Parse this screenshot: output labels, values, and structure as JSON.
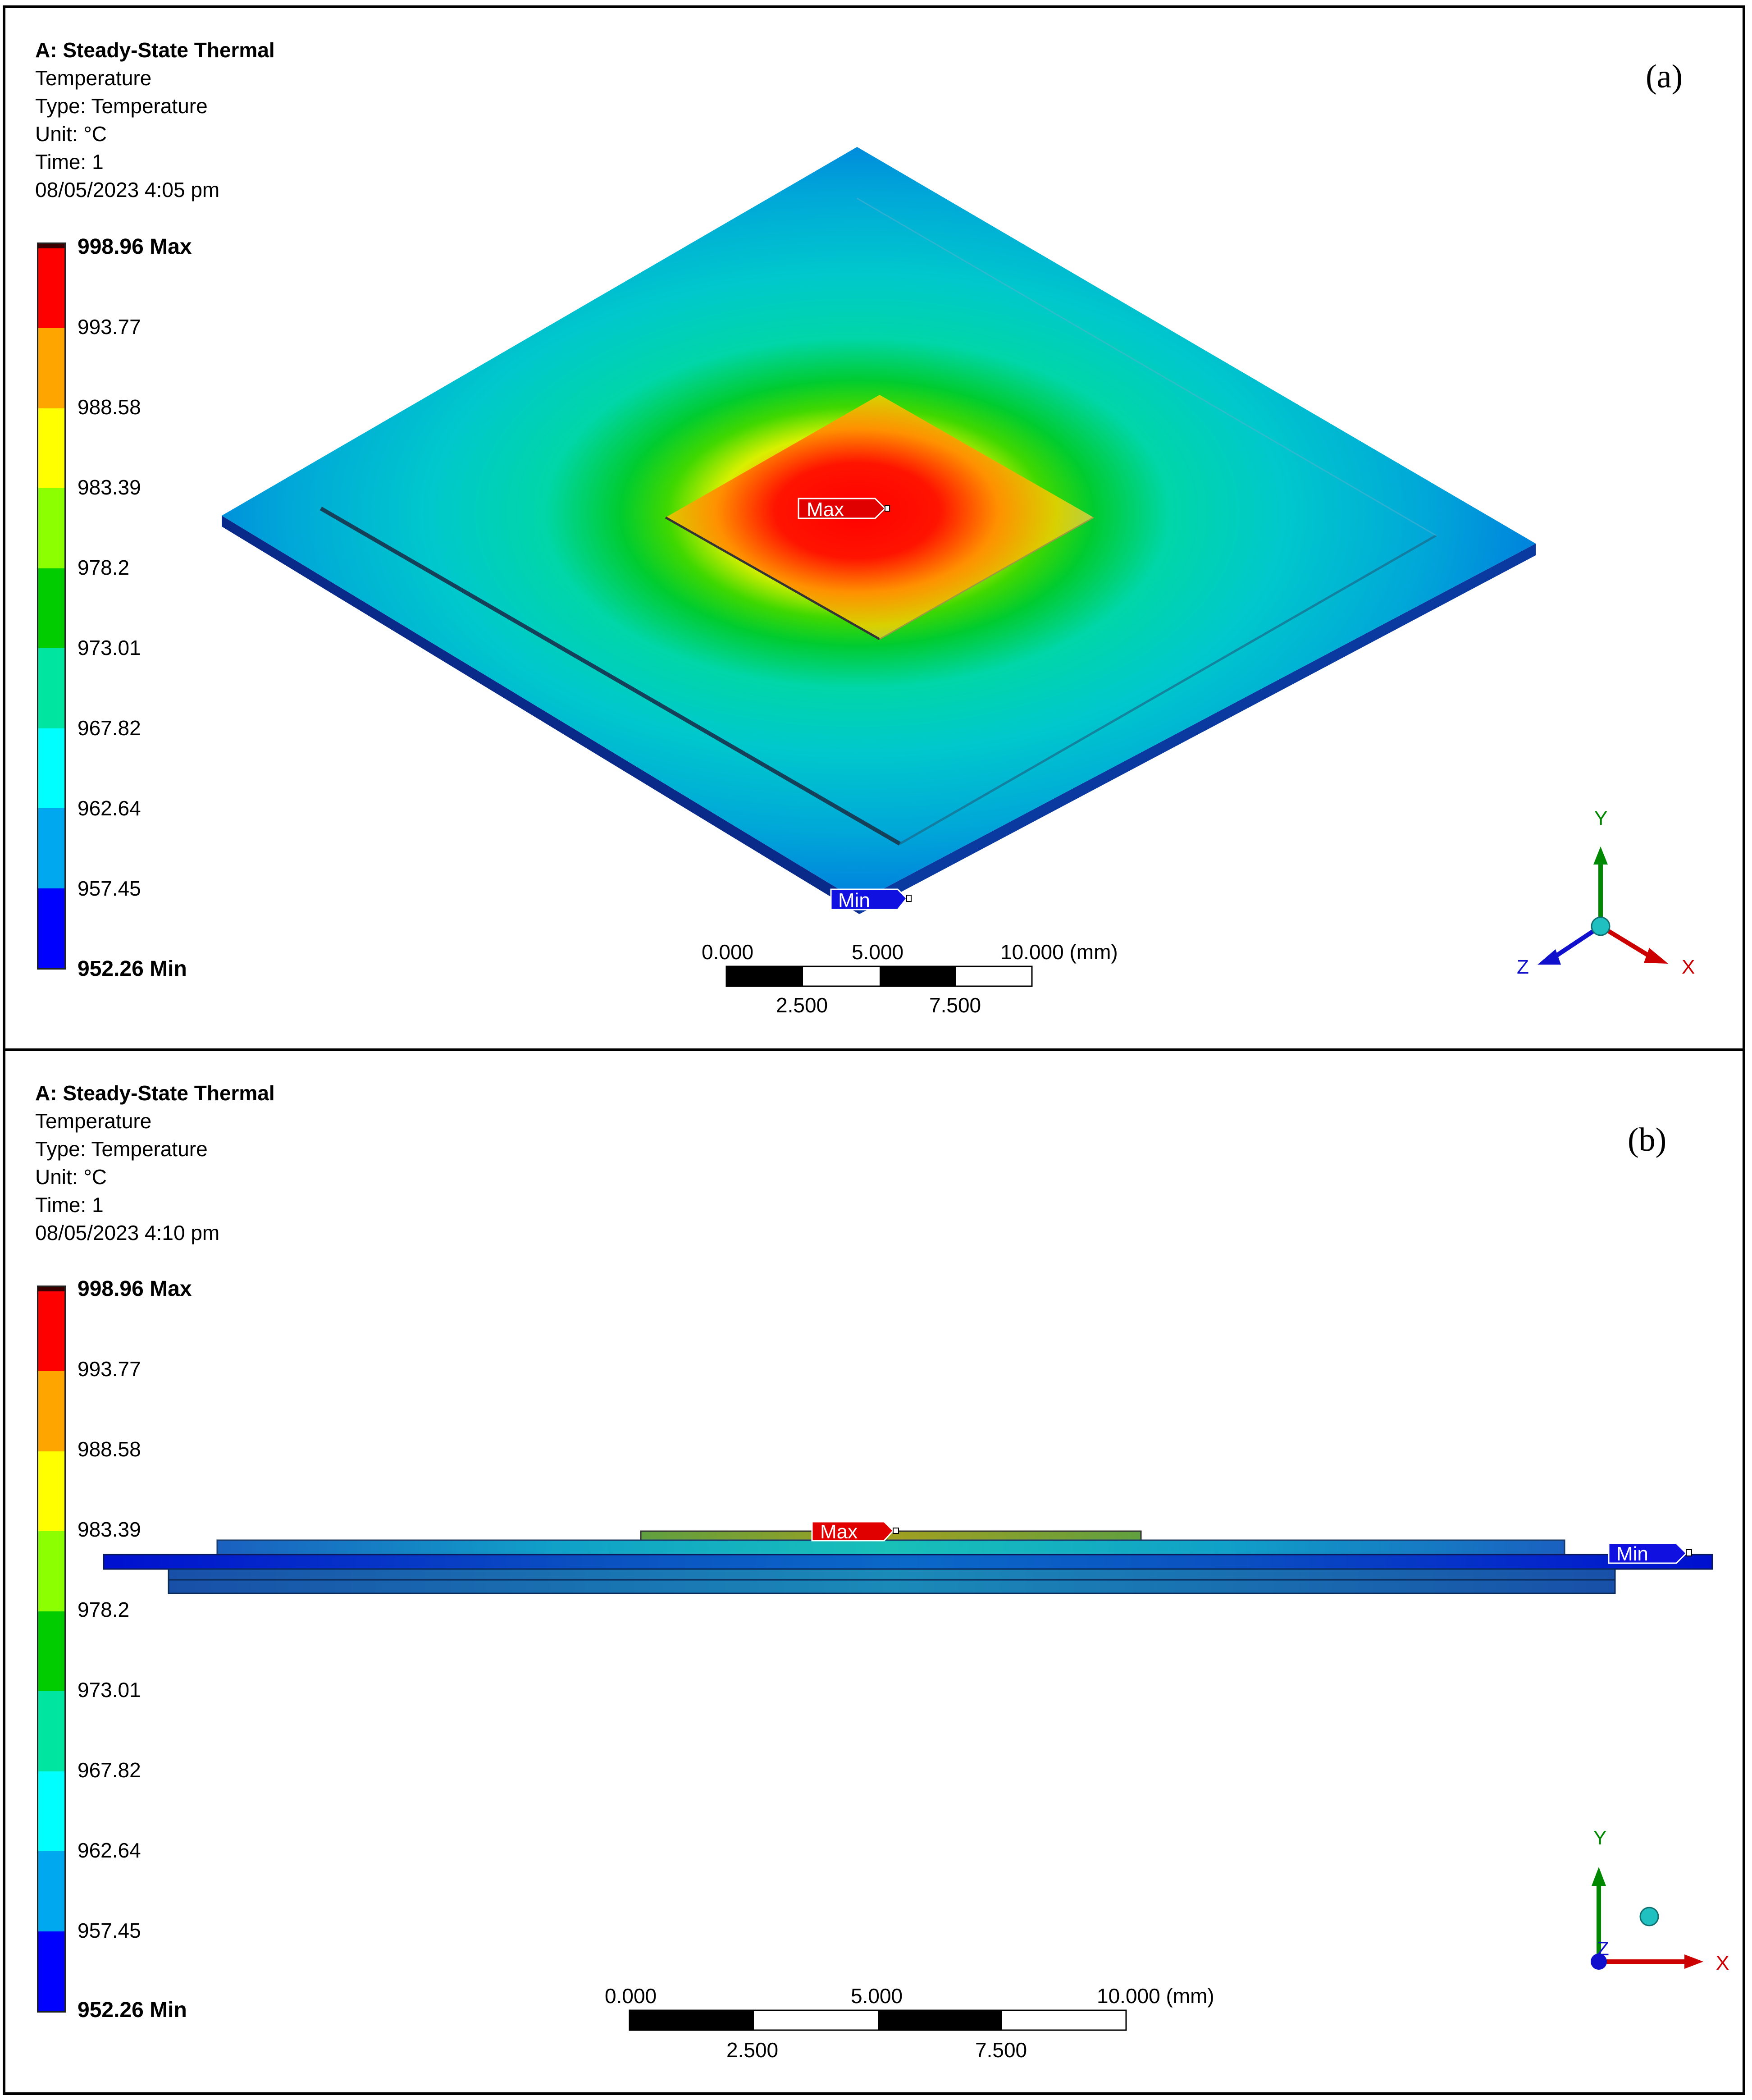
{
  "legend": {
    "colors": [
      "#FF0000",
      "#FFA500",
      "#FFFF00",
      "#8CFF00",
      "#00CC00",
      "#00E6A0",
      "#00FFFF",
      "#00A8F0",
      "#0000FF"
    ],
    "labels": [
      "998.96 Max",
      "993.77",
      "988.58",
      "983.39",
      "978.2",
      "973.01",
      "967.82",
      "962.64",
      "957.45",
      "952.26 Min"
    ]
  },
  "panel_a": {
    "title": "A: Steady-State Thermal",
    "result": "Temperature",
    "type": "Type: Temperature",
    "unit": "Unit: °C",
    "time": "Time: 1",
    "date": "08/05/2023 4:05 pm",
    "letter": "(a)",
    "max_tag": "Max",
    "min_tag": "Min",
    "scale": {
      "top": [
        "0.000",
        "5.000",
        "10.000 (mm)"
      ],
      "bottom": [
        "2.500",
        "7.500"
      ]
    },
    "axes": {
      "y": "Y",
      "x": "X",
      "z": "Z"
    }
  },
  "panel_b": {
    "title": "A: Steady-State Thermal",
    "result": "Temperature",
    "type": "Type: Temperature",
    "unit": "Unit: °C",
    "time": "Time: 1",
    "date": "08/05/2023 4:10 pm",
    "letter": "(b)",
    "max_tag": "Max",
    "min_tag": "Min",
    "scale": {
      "top": [
        "0.000",
        "5.000",
        "10.000 (mm)"
      ],
      "bottom": [
        "2.500",
        "7.500"
      ]
    },
    "axes": {
      "y": "Y",
      "x": "X",
      "z": "Z"
    }
  }
}
